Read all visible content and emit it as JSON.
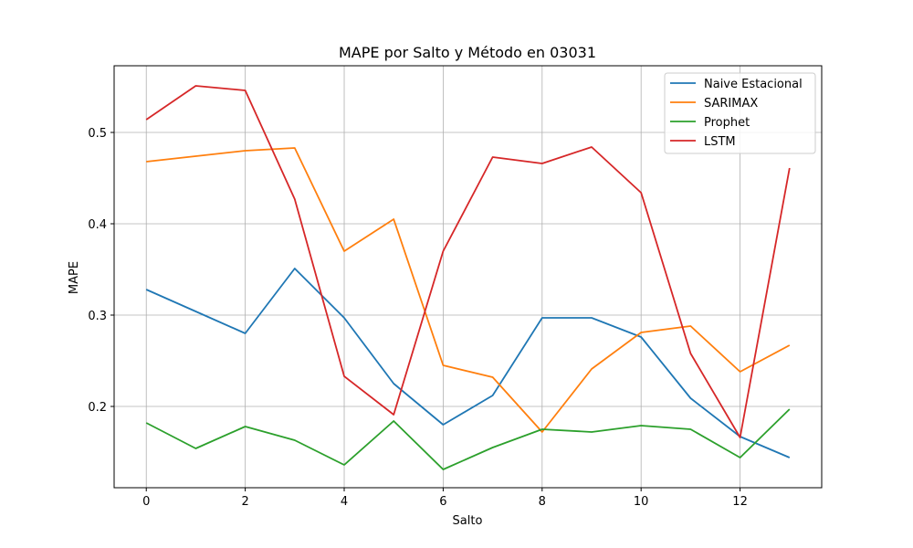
{
  "chart_data": {
    "type": "line",
    "title": "MAPE por Salto y Método en 03031",
    "xlabel": "Salto",
    "ylabel": "MAPE",
    "x": [
      0,
      1,
      2,
      3,
      4,
      5,
      6,
      7,
      8,
      9,
      10,
      11,
      12,
      13
    ],
    "xlim": [
      -0.65,
      13.65
    ],
    "ylim": [
      0.111,
      0.573
    ],
    "xticks": [
      0,
      2,
      4,
      6,
      8,
      10,
      12
    ],
    "yticks": [
      0.2,
      0.3,
      0.4,
      0.5
    ],
    "ytick_labels": [
      "0.2",
      "0.3",
      "0.4",
      "0.5"
    ],
    "grid": true,
    "legend_position": "top-right",
    "series": [
      {
        "name": "Naive Estacional",
        "color": "#1f77b4",
        "values": [
          0.328,
          0.304,
          0.28,
          0.351,
          0.297,
          0.225,
          0.18,
          0.212,
          0.297,
          0.297,
          0.276,
          0.209,
          0.167,
          0.144
        ]
      },
      {
        "name": "SARIMAX",
        "color": "#ff7f0e",
        "values": [
          0.468,
          0.474,
          0.48,
          0.483,
          0.37,
          0.405,
          0.245,
          0.232,
          0.172,
          0.241,
          0.281,
          0.288,
          0.238,
          0.267
        ]
      },
      {
        "name": "Prophet",
        "color": "#2ca02c",
        "values": [
          0.182,
          0.154,
          0.178,
          0.163,
          0.136,
          0.184,
          0.131,
          0.155,
          0.175,
          0.172,
          0.179,
          0.175,
          0.144,
          0.197
        ]
      },
      {
        "name": "LSTM",
        "color": "#d62728",
        "values": [
          0.514,
          0.551,
          0.546,
          0.427,
          0.233,
          0.191,
          0.37,
          0.473,
          0.466,
          0.484,
          0.434,
          0.258,
          0.166,
          0.461
        ]
      }
    ]
  }
}
